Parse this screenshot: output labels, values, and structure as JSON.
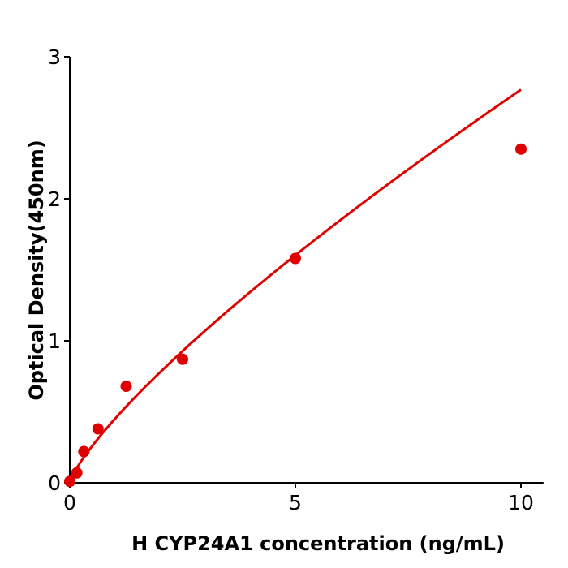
{
  "chart_data": {
    "type": "scatter",
    "title": "",
    "xlabel": "H  CYP24A1 concentration (ng/mL)",
    "ylabel": "Optical Density(450nm)",
    "xlim": [
      0,
      10.5
    ],
    "ylim": [
      0,
      3
    ],
    "xticks": [
      "0",
      "5",
      "10"
    ],
    "yticks": [
      "0",
      "1",
      "2",
      "3"
    ],
    "grid": false,
    "color": "#e00000",
    "points": [
      {
        "x": 0,
        "y": 0.01
      },
      {
        "x": 0.156,
        "y": 0.07
      },
      {
        "x": 0.312,
        "y": 0.22
      },
      {
        "x": 0.625,
        "y": 0.38
      },
      {
        "x": 1.25,
        "y": 0.68
      },
      {
        "x": 2.5,
        "y": 0.87
      },
      {
        "x": 5,
        "y": 1.58
      },
      {
        "x": 10,
        "y": 2.35
      }
    ],
    "fit_line": true
  }
}
